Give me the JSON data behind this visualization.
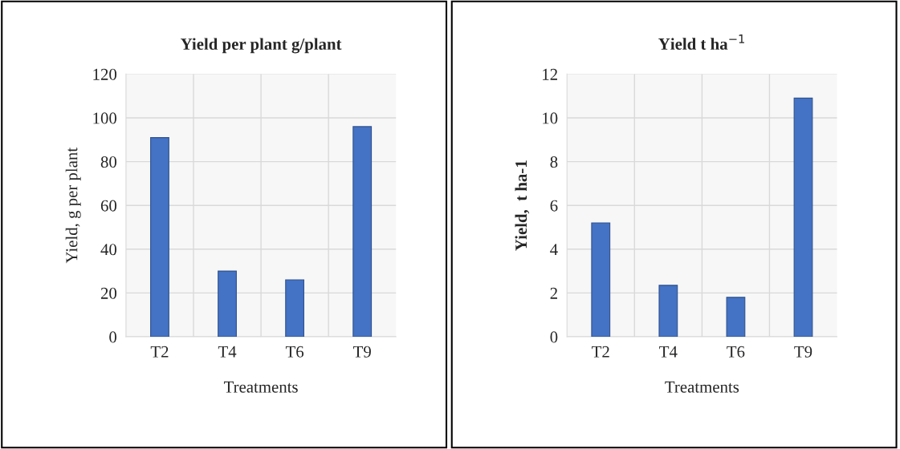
{
  "chart_data": [
    {
      "type": "bar",
      "title": "Yield per plant g/plant",
      "xlabel": "Treatments",
      "ylabel": "Yield, g per plant",
      "categories": [
        "T2",
        "T4",
        "T6",
        "T9"
      ],
      "values": [
        91,
        30,
        26,
        96
      ],
      "color": "#4472c4",
      "ylim": [
        0,
        120
      ],
      "yticks": [
        0,
        20,
        40,
        60,
        80,
        100,
        120
      ],
      "grid": true
    },
    {
      "type": "bar",
      "title": "Yield t ha$^{−1}$",
      "xlabel": "Treatments",
      "ylabel": "Yield,  t ha-1",
      "categories": [
        "T2",
        "T4",
        "T6",
        "T9"
      ],
      "values": [
        5.2,
        2.35,
        1.8,
        10.9
      ],
      "color": "#4472c4",
      "ylim": [
        0,
        12
      ],
      "yticks": [
        0,
        2,
        4,
        6,
        8,
        10,
        12
      ],
      "grid": true
    }
  ]
}
